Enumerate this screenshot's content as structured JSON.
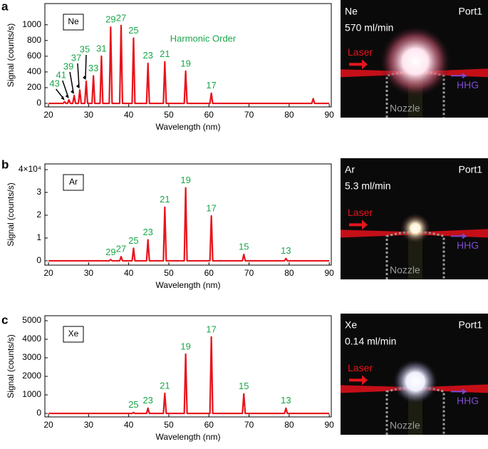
{
  "chart_data": [
    {
      "type": "line",
      "panel": "a",
      "gas": "Ne",
      "xlabel": "Wavelength (nm)",
      "ylabel": "Signal (counts/s)",
      "color": "#e8141c",
      "note": "Harmonic Order",
      "xlim": [
        19.1,
        90.5
      ],
      "xticks": [
        20,
        30,
        40,
        50,
        60,
        70,
        80,
        90
      ],
      "ylim": [
        -45,
        1270
      ],
      "yticks": [
        0,
        200,
        400,
        600,
        800,
        1000
      ],
      "x": [
        20,
        23.65,
        24.0,
        24.35,
        24.75,
        25.1,
        25.45,
        26.05,
        26.4,
        26.75,
        27.45,
        27.8,
        28.15,
        29.05,
        29.4,
        29.75,
        30.85,
        31.2,
        31.55,
        32.85,
        33.2,
        33.55,
        35.15,
        35.5,
        35.85,
        37.75,
        38.1,
        38.45,
        40.85,
        41.2,
        41.55,
        44.45,
        44.8,
        45.15,
        48.65,
        49.0,
        49.35,
        53.85,
        54.2,
        54.55,
        60.25,
        60.6,
        60.95,
        85.65,
        86.0,
        86.35,
        90
      ],
      "values": [
        0,
        0,
        20,
        0,
        0,
        45,
        0,
        0,
        100,
        0,
        0,
        170,
        0,
        0,
        280,
        0,
        0,
        350,
        0,
        0,
        600,
        0,
        0,
        970,
        0,
        0,
        990,
        0,
        0,
        830,
        0,
        0,
        510,
        0,
        0,
        530,
        0,
        0,
        410,
        0,
        0,
        130,
        0,
        0,
        60,
        0,
        0
      ],
      "annotations": [
        {
          "text": "43",
          "x": 24.0,
          "arrow": true
        },
        {
          "text": "41",
          "x": 25.1,
          "arrow": true
        },
        {
          "text": "39",
          "x": 26.4,
          "arrow": true
        },
        {
          "text": "37",
          "x": 27.8,
          "arrow": true
        },
        {
          "text": "35",
          "x": 29.4,
          "arrow": true
        },
        {
          "text": "33",
          "x": 31.2
        },
        {
          "text": "31",
          "x": 33.2
        },
        {
          "text": "29",
          "x": 35.5
        },
        {
          "text": "27",
          "x": 38.1
        },
        {
          "text": "25",
          "x": 41.2
        },
        {
          "text": "23",
          "x": 44.8
        },
        {
          "text": "21",
          "x": 49.0
        },
        {
          "text": "19",
          "x": 54.2
        },
        {
          "text": "17",
          "x": 60.6
        }
      ]
    },
    {
      "type": "line",
      "panel": "b",
      "gas": "Ar",
      "xlabel": "Wavelength (nm)",
      "ylabel": "Signal (counts/s)",
      "color": "#e8141c",
      "xlim": [
        19.1,
        90.5
      ],
      "xticks": [
        20,
        30,
        40,
        50,
        60,
        70,
        80,
        90
      ],
      "ylim": [
        -0.19,
        4.25
      ],
      "yticks": [
        0,
        1,
        2,
        3,
        {
          "value": 4,
          "label": "4×10⁴"
        }
      ],
      "x": [
        20,
        35.15,
        35.5,
        35.85,
        37.75,
        38.1,
        38.45,
        40.85,
        41.2,
        41.55,
        44.45,
        44.8,
        45.15,
        48.65,
        49.0,
        49.35,
        53.85,
        54.2,
        54.55,
        60.25,
        60.6,
        60.95,
        68.35,
        68.7,
        69.05,
        78.85,
        79.2,
        79.55,
        90
      ],
      "values": [
        0,
        0,
        0.05,
        0,
        0,
        0.18,
        0,
        0,
        0.55,
        0,
        0,
        0.92,
        0,
        0,
        2.35,
        0,
        0,
        3.2,
        0,
        0,
        1.97,
        0,
        0,
        0.28,
        0,
        0,
        0.1,
        0,
        0
      ],
      "annotations": [
        {
          "text": "29",
          "x": 35.5
        },
        {
          "text": "27",
          "x": 38.1
        },
        {
          "text": "25",
          "x": 41.2
        },
        {
          "text": "23",
          "x": 44.8
        },
        {
          "text": "21",
          "x": 49.0
        },
        {
          "text": "19",
          "x": 54.2
        },
        {
          "text": "17",
          "x": 60.6
        },
        {
          "text": "15",
          "x": 68.7
        },
        {
          "text": "13",
          "x": 79.2
        }
      ]
    },
    {
      "type": "line",
      "panel": "c",
      "gas": "Xe",
      "xlabel": "Wavelength (nm)",
      "ylabel": "Signal (counts/s)",
      "color": "#e8141c",
      "xlim": [
        19.1,
        90.5
      ],
      "xticks": [
        20,
        30,
        40,
        50,
        60,
        70,
        80,
        90
      ],
      "ylim": [
        -190,
        5270
      ],
      "yticks": [
        0,
        1000,
        2000,
        3000,
        4000,
        5000
      ],
      "x": [
        20,
        40.85,
        41.2,
        41.55,
        44.45,
        44.8,
        45.15,
        48.65,
        49.0,
        49.35,
        53.85,
        54.2,
        54.55,
        60.25,
        60.6,
        60.95,
        68.35,
        68.7,
        69.05,
        78.85,
        79.2,
        79.55,
        90
      ],
      "values": [
        0,
        0,
        50,
        0,
        0,
        280,
        0,
        0,
        1080,
        0,
        0,
        3200,
        0,
        0,
        4120,
        0,
        0,
        1050,
        0,
        0,
        280,
        0,
        0
      ],
      "annotations": [
        {
          "text": "25",
          "x": 41.2
        },
        {
          "text": "23",
          "x": 44.8
        },
        {
          "text": "21",
          "x": 49.0
        },
        {
          "text": "19",
          "x": 54.2
        },
        {
          "text": "17",
          "x": 60.6
        },
        {
          "text": "15",
          "x": 68.7
        },
        {
          "text": "13",
          "x": 79.2
        }
      ]
    }
  ],
  "photos": [
    {
      "gas": "Ne",
      "flow": "570 ml/min",
      "port": "Port1",
      "laser": "Laser",
      "hhg": "HHG",
      "nozzle": "Nozzle"
    },
    {
      "gas": "Ar",
      "flow": "5.3 ml/min",
      "port": "Port1",
      "laser": "Laser",
      "hhg": "HHG",
      "nozzle": "Nozzle"
    },
    {
      "gas": "Xe",
      "flow": "0.14 ml/min",
      "port": "Port1",
      "laser": "Laser",
      "hhg": "HHG",
      "nozzle": "Nozzle"
    }
  ]
}
